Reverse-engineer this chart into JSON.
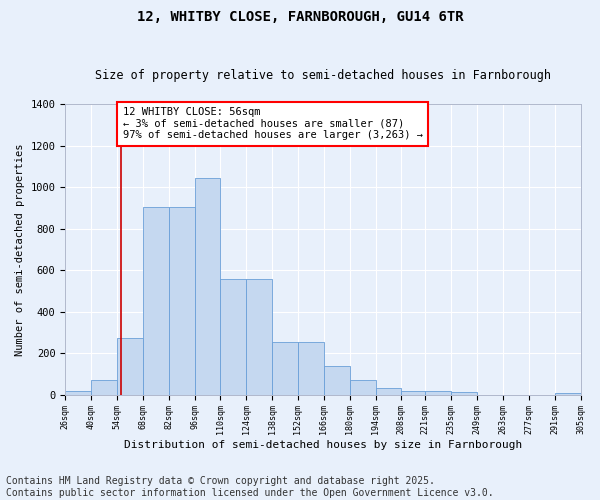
{
  "title": "12, WHITBY CLOSE, FARNBOROUGH, GU14 6TR",
  "subtitle": "Size of property relative to semi-detached houses in Farnborough",
  "xlabel": "Distribution of semi-detached houses by size in Farnborough",
  "ylabel": "Number of semi-detached properties",
  "bar_color": "#c5d8f0",
  "bar_edge_color": "#6a9fd8",
  "bg_color": "#e8f0fb",
  "grid_color": "#ffffff",
  "annotation_box_text": "12 WHITBY CLOSE: 56sqm\n← 3% of semi-detached houses are smaller (87)\n97% of semi-detached houses are larger (3,263) →",
  "vline_x": 56,
  "vline_color": "#cc0000",
  "bin_edges": [
    26,
    40,
    54,
    68,
    82,
    96,
    110,
    124,
    138,
    152,
    166,
    180,
    194,
    208,
    221,
    235,
    249,
    263,
    277,
    291,
    305
  ],
  "bar_heights": [
    20,
    70,
    275,
    905,
    905,
    1045,
    555,
    555,
    255,
    255,
    140,
    70,
    30,
    20,
    20,
    15,
    0,
    0,
    0,
    10,
    0
  ],
  "ylim": [
    0,
    1400
  ],
  "yticks": [
    0,
    200,
    400,
    600,
    800,
    1000,
    1200,
    1400
  ],
  "footer": "Contains HM Land Registry data © Crown copyright and database right 2025.\nContains public sector information licensed under the Open Government Licence v3.0.",
  "footer_fontsize": 7,
  "title_fontsize": 10,
  "subtitle_fontsize": 8.5,
  "xlabel_fontsize": 8,
  "ylabel_fontsize": 7.5
}
